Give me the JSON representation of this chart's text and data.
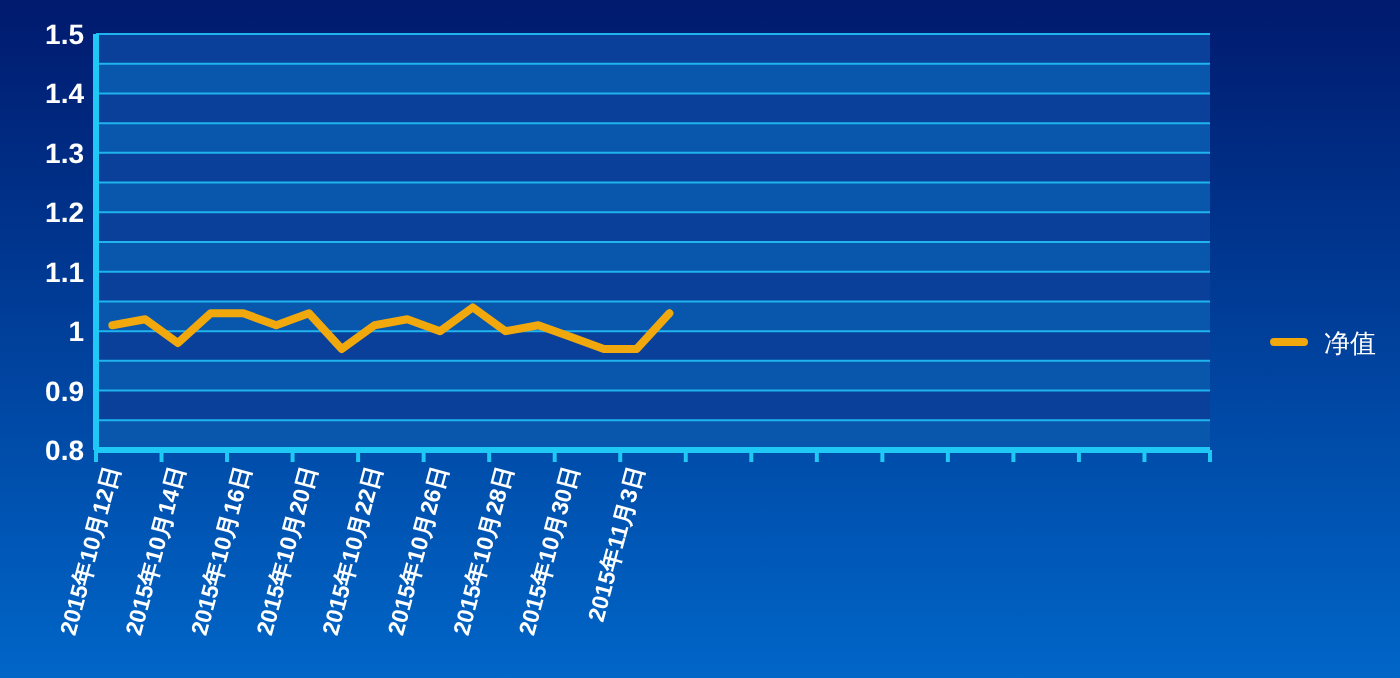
{
  "chart_data": {
    "type": "line",
    "categories": [
      "2015年10月12日",
      null,
      "2015年10月14日",
      null,
      "2015年10月16日",
      null,
      "2015年10月20日",
      null,
      "2015年10月22日",
      null,
      "2015年10月26日",
      null,
      "2015年10月28日",
      null,
      "2015年10月30日",
      null,
      "2015年11月3日",
      null,
      null,
      null,
      null,
      null,
      null,
      null,
      null,
      null,
      null,
      null,
      null,
      null,
      null,
      null,
      null,
      null
    ],
    "series": [
      {
        "name": "净值",
        "color": "#f0a80c",
        "values": [
          1.01,
          1.02,
          0.98,
          1.03,
          1.03,
          1.01,
          1.03,
          0.97,
          1.01,
          1.02,
          1.0,
          1.04,
          1.0,
          1.01,
          0.99,
          0.97,
          0.97,
          1.03,
          null,
          null,
          null,
          null,
          null,
          null,
          null,
          null,
          null,
          null,
          null,
          null,
          null,
          null,
          null,
          null
        ]
      }
    ],
    "ylim": [
      0.8,
      1.5
    ],
    "yticks": [
      0.8,
      {
        "value": 0.85,
        "label": null
      },
      0.9,
      {
        "value": 0.95,
        "label": null
      },
      1,
      {
        "value": 1.05,
        "label": null
      },
      1.1,
      {
        "value": 1.15,
        "label": null
      },
      1.2,
      {
        "value": 1.25,
        "label": null
      },
      1.3,
      {
        "value": 1.35,
        "label": null
      },
      1.4,
      {
        "value": 1.45,
        "label": null
      },
      1.5
    ],
    "bands": [
      {
        "axis": "y",
        "from": 0.8,
        "to": 0.85,
        "color": "#0857ad"
      },
      {
        "axis": "y",
        "from": 0.85,
        "to": 0.9,
        "color": "#0a3f9a"
      },
      {
        "axis": "y",
        "from": 0.9,
        "to": 0.95,
        "color": "#0857ad"
      },
      {
        "axis": "y",
        "from": 0.95,
        "to": 1,
        "color": "#0a3f9a"
      },
      {
        "axis": "y",
        "from": 1,
        "to": 1.05,
        "color": "#0857ad"
      },
      {
        "axis": "y",
        "from": 1.05,
        "to": 1.1,
        "color": "#0a3f9a"
      },
      {
        "axis": "y",
        "from": 1.1,
        "to": 1.15,
        "color": "#0857ad"
      },
      {
        "axis": "y",
        "from": 1.15,
        "to": 1.2,
        "color": "#0a3f9a"
      },
      {
        "axis": "y",
        "from": 1.2,
        "to": 1.25,
        "color": "#0857ad"
      },
      {
        "axis": "y",
        "from": 1.25,
        "to": 1.3,
        "color": "#0a3f9a"
      },
      {
        "axis": "y",
        "from": 1.3,
        "to": 1.35,
        "color": "#0857ad"
      },
      {
        "axis": "y",
        "from": 1.35,
        "to": 1.4,
        "color": "#0a3f9a"
      },
      {
        "axis": "y",
        "from": 1.4,
        "to": 1.45,
        "color": "#0857ad"
      },
      {
        "axis": "y",
        "from": 1.45,
        "to": 1.5,
        "color": "#0a3f9a"
      }
    ],
    "grid": "y",
    "legend": "right",
    "marker": "none",
    "line_style": "solid"
  }
}
